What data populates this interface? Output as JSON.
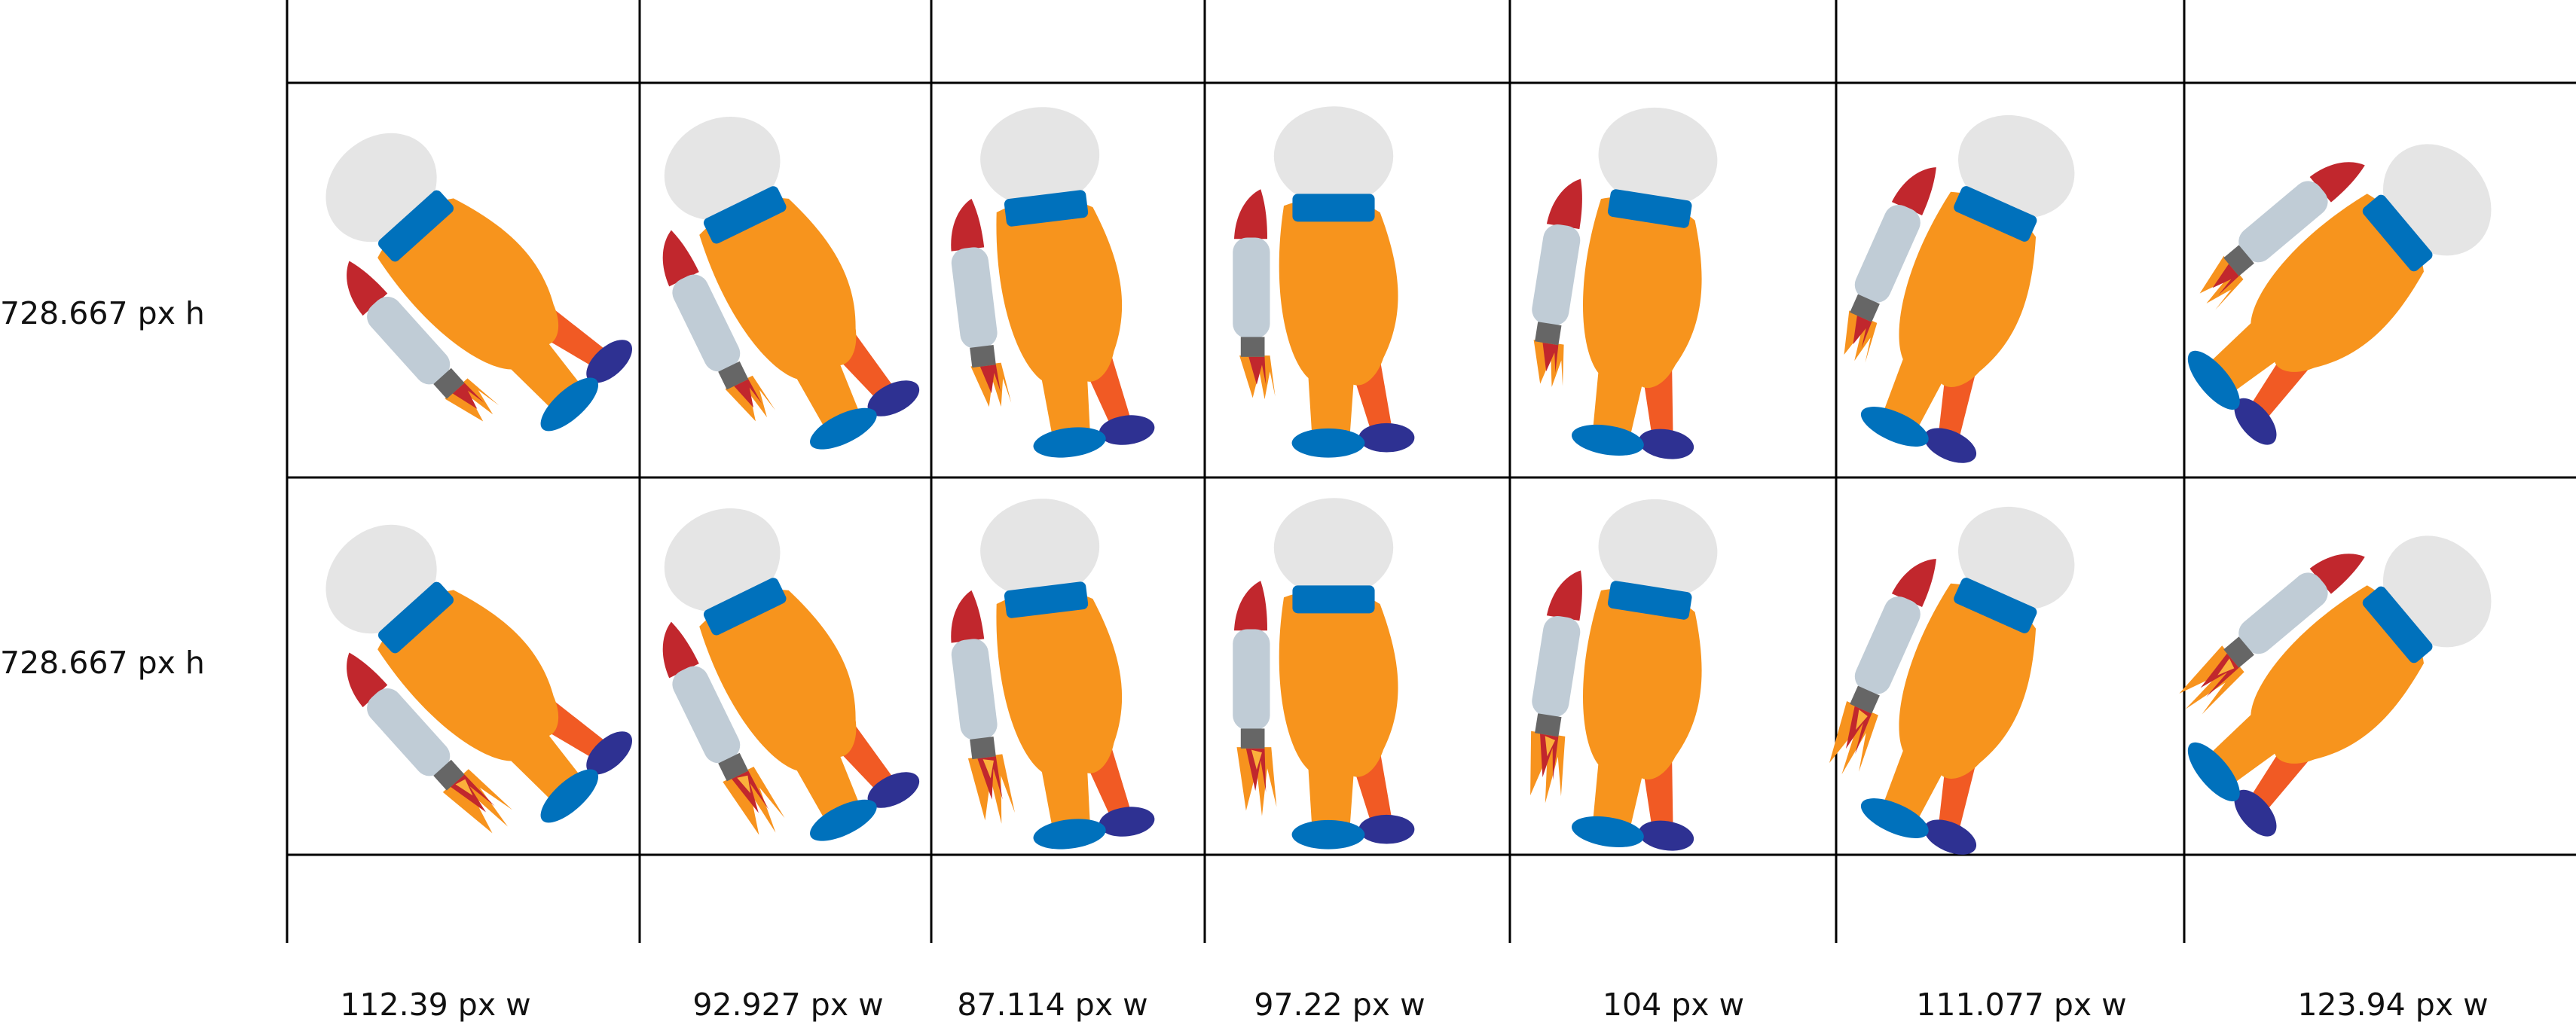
{
  "row_labels": [
    "728.667 px h",
    "728.667 px h"
  ],
  "column_labels": [
    "112.39 px w",
    "92.927 px w",
    "87.114 px w",
    "97.22 px w",
    "104 px w",
    "111.077 px w",
    "123.94 px w"
  ],
  "rows": [
    {
      "frames": [
        {
          "tilt_deg": -42,
          "flame": "short"
        },
        {
          "tilt_deg": -26,
          "flame": "short"
        },
        {
          "tilt_deg": -7,
          "flame": "short"
        },
        {
          "tilt_deg": 0,
          "flame": "short"
        },
        {
          "tilt_deg": 9,
          "flame": "short"
        },
        {
          "tilt_deg": 24,
          "flame": "short"
        },
        {
          "tilt_deg": 50,
          "flame": "short"
        }
      ]
    },
    {
      "frames": [
        {
          "tilt_deg": -42,
          "flame": "long"
        },
        {
          "tilt_deg": -26,
          "flame": "long"
        },
        {
          "tilt_deg": -7,
          "flame": "long"
        },
        {
          "tilt_deg": 0,
          "flame": "long"
        },
        {
          "tilt_deg": 9,
          "flame": "long"
        },
        {
          "tilt_deg": 24,
          "flame": "long"
        },
        {
          "tilt_deg": 50,
          "flame": "long"
        }
      ]
    }
  ],
  "colors": {
    "helmet": "#e5e5e5",
    "suit": "#f7941d",
    "suit_shadow": "#f15a24",
    "collar": "#0071bc",
    "boot_front": "#0071bc",
    "boot_back": "#2e3192",
    "tank": "#c0ccd6",
    "tank_tip": "#c1272d",
    "nozzle": "#666666",
    "flame_outer": "#f7931e",
    "flame_inner": "#c1272d",
    "grid_line": "#000000"
  },
  "icons": {
    "frame": "astronaut-jetpack-icon"
  }
}
